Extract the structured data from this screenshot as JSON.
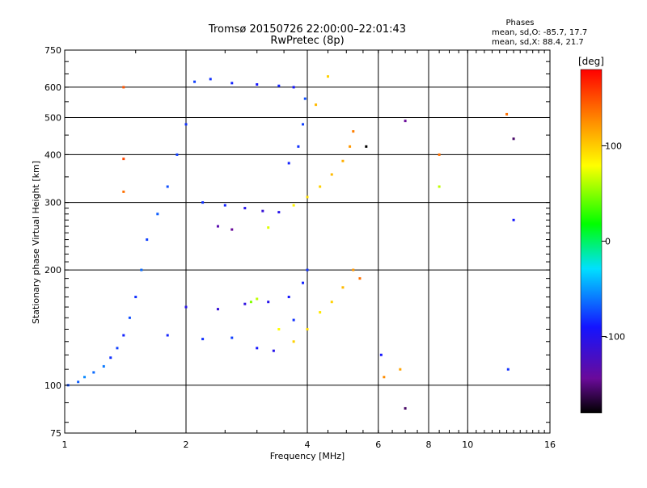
{
  "chart_data": {
    "type": "scatter",
    "title": "Tromsø 20150726 22:00:00–22:01:43",
    "subtitle": "RwPretec (8p)",
    "xlabel": "Frequency [MHz]",
    "ylabel": "Stationary phase Virtual Height [km]",
    "x_scale": "log2",
    "y_scale": "log",
    "xlim": [
      1,
      16
    ],
    "ylim": [
      75,
      750
    ],
    "x_ticks": [
      1,
      2,
      4,
      6,
      8,
      10,
      16
    ],
    "y_ticks": [
      75,
      100,
      200,
      300,
      400,
      500,
      600,
      750
    ],
    "grid": true,
    "stats": {
      "heading": "Phases",
      "line_o": "mean, sd,O: -85.7, 17.7",
      "line_x": "mean, sd,X:  88.4, 21.7"
    },
    "colorbar": {
      "label": "[deg]",
      "range": [
        -180,
        180
      ],
      "ticks": [
        100,
        0,
        -100
      ],
      "colormap": "rainbow"
    },
    "series": [
      {
        "points": [
          {
            "x": 1.02,
            "y": 100,
            "phase": -80
          },
          {
            "x": 1.08,
            "y": 102,
            "phase": -75
          },
          {
            "x": 1.12,
            "y": 105,
            "phase": -60
          },
          {
            "x": 1.18,
            "y": 108,
            "phase": -70
          },
          {
            "x": 1.25,
            "y": 112,
            "phase": -65
          },
          {
            "x": 1.3,
            "y": 118,
            "phase": -90
          },
          {
            "x": 1.35,
            "y": 125,
            "phase": -85
          },
          {
            "x": 1.4,
            "y": 135,
            "phase": -95
          },
          {
            "x": 1.45,
            "y": 150,
            "phase": -80
          },
          {
            "x": 1.5,
            "y": 170,
            "phase": -90
          },
          {
            "x": 1.55,
            "y": 200,
            "phase": -70
          },
          {
            "x": 1.6,
            "y": 240,
            "phase": -85
          },
          {
            "x": 1.7,
            "y": 280,
            "phase": -75
          },
          {
            "x": 1.8,
            "y": 330,
            "phase": -80
          },
          {
            "x": 1.9,
            "y": 400,
            "phase": -85
          },
          {
            "x": 2.0,
            "y": 480,
            "phase": -90
          },
          {
            "x": 2.1,
            "y": 620,
            "phase": -85
          },
          {
            "x": 2.3,
            "y": 630,
            "phase": -90
          },
          {
            "x": 2.6,
            "y": 615,
            "phase": -95
          },
          {
            "x": 3.0,
            "y": 610,
            "phase": -100
          },
          {
            "x": 3.4,
            "y": 605,
            "phase": -95
          },
          {
            "x": 3.7,
            "y": 600,
            "phase": -100
          },
          {
            "x": 2.2,
            "y": 300,
            "phase": -90
          },
          {
            "x": 2.5,
            "y": 295,
            "phase": -95
          },
          {
            "x": 2.8,
            "y": 290,
            "phase": -110
          },
          {
            "x": 3.1,
            "y": 285,
            "phase": -120
          },
          {
            "x": 3.4,
            "y": 283,
            "phase": -110
          },
          {
            "x": 2.4,
            "y": 260,
            "phase": -140
          },
          {
            "x": 2.6,
            "y": 255,
            "phase": -150
          },
          {
            "x": 3.6,
            "y": 380,
            "phase": -95
          },
          {
            "x": 3.8,
            "y": 420,
            "phase": -90
          },
          {
            "x": 3.9,
            "y": 480,
            "phase": -85
          },
          {
            "x": 3.95,
            "y": 560,
            "phase": -80
          },
          {
            "x": 2.0,
            "y": 160,
            "phase": -110
          },
          {
            "x": 2.4,
            "y": 158,
            "phase": -120
          },
          {
            "x": 2.8,
            "y": 163,
            "phase": -115
          },
          {
            "x": 3.2,
            "y": 165,
            "phase": -110
          },
          {
            "x": 3.6,
            "y": 170,
            "phase": -100
          },
          {
            "x": 3.9,
            "y": 185,
            "phase": -95
          },
          {
            "x": 4.0,
            "y": 200,
            "phase": -90
          },
          {
            "x": 1.8,
            "y": 135,
            "phase": -95
          },
          {
            "x": 2.2,
            "y": 132,
            "phase": -90
          },
          {
            "x": 2.6,
            "y": 133,
            "phase": -85
          },
          {
            "x": 3.0,
            "y": 125,
            "phase": -100
          },
          {
            "x": 3.3,
            "y": 123,
            "phase": -110
          },
          {
            "x": 3.7,
            "y": 148,
            "phase": -90
          },
          {
            "x": 2.9,
            "y": 165,
            "phase": 40
          },
          {
            "x": 3.0,
            "y": 168,
            "phase": 60
          },
          {
            "x": 3.4,
            "y": 140,
            "phase": 80
          },
          {
            "x": 3.7,
            "y": 130,
            "phase": 100
          },
          {
            "x": 4.0,
            "y": 140,
            "phase": 95
          },
          {
            "x": 4.3,
            "y": 155,
            "phase": 90
          },
          {
            "x": 4.6,
            "y": 165,
            "phase": 100
          },
          {
            "x": 4.9,
            "y": 180,
            "phase": 110
          },
          {
            "x": 5.2,
            "y": 200,
            "phase": 125
          },
          {
            "x": 5.4,
            "y": 190,
            "phase": 140
          },
          {
            "x": 3.7,
            "y": 295,
            "phase": 85
          },
          {
            "x": 4.0,
            "y": 310,
            "phase": 95
          },
          {
            "x": 4.3,
            "y": 330,
            "phase": 100
          },
          {
            "x": 4.6,
            "y": 355,
            "phase": 110
          },
          {
            "x": 4.9,
            "y": 385,
            "phase": 115
          },
          {
            "x": 5.1,
            "y": 420,
            "phase": 125
          },
          {
            "x": 5.2,
            "y": 460,
            "phase": 135
          },
          {
            "x": 4.2,
            "y": 540,
            "phase": 110
          },
          {
            "x": 4.5,
            "y": 640,
            "phase": 100
          },
          {
            "x": 3.2,
            "y": 258,
            "phase": 70
          },
          {
            "x": 1.4,
            "y": 600,
            "phase": 150
          },
          {
            "x": 1.4,
            "y": 320,
            "phase": 140
          },
          {
            "x": 1.4,
            "y": 390,
            "phase": 155
          },
          {
            "x": 5.6,
            "y": 420,
            "phase": -180
          },
          {
            "x": 6.1,
            "y": 120,
            "phase": -100
          },
          {
            "x": 6.2,
            "y": 105,
            "phase": 130
          },
          {
            "x": 6.8,
            "y": 110,
            "phase": 120
          },
          {
            "x": 7.0,
            "y": 490,
            "phase": -150
          },
          {
            "x": 7.0,
            "y": 87,
            "phase": -160
          },
          {
            "x": 8.5,
            "y": 400,
            "phase": 140
          },
          {
            "x": 8.5,
            "y": 330,
            "phase": 60
          },
          {
            "x": 12.5,
            "y": 510,
            "phase": 140
          },
          {
            "x": 13.0,
            "y": 440,
            "phase": -160
          },
          {
            "x": 13.0,
            "y": 270,
            "phase": -100
          },
          {
            "x": 12.6,
            "y": 110,
            "phase": -90
          }
        ]
      }
    ]
  }
}
